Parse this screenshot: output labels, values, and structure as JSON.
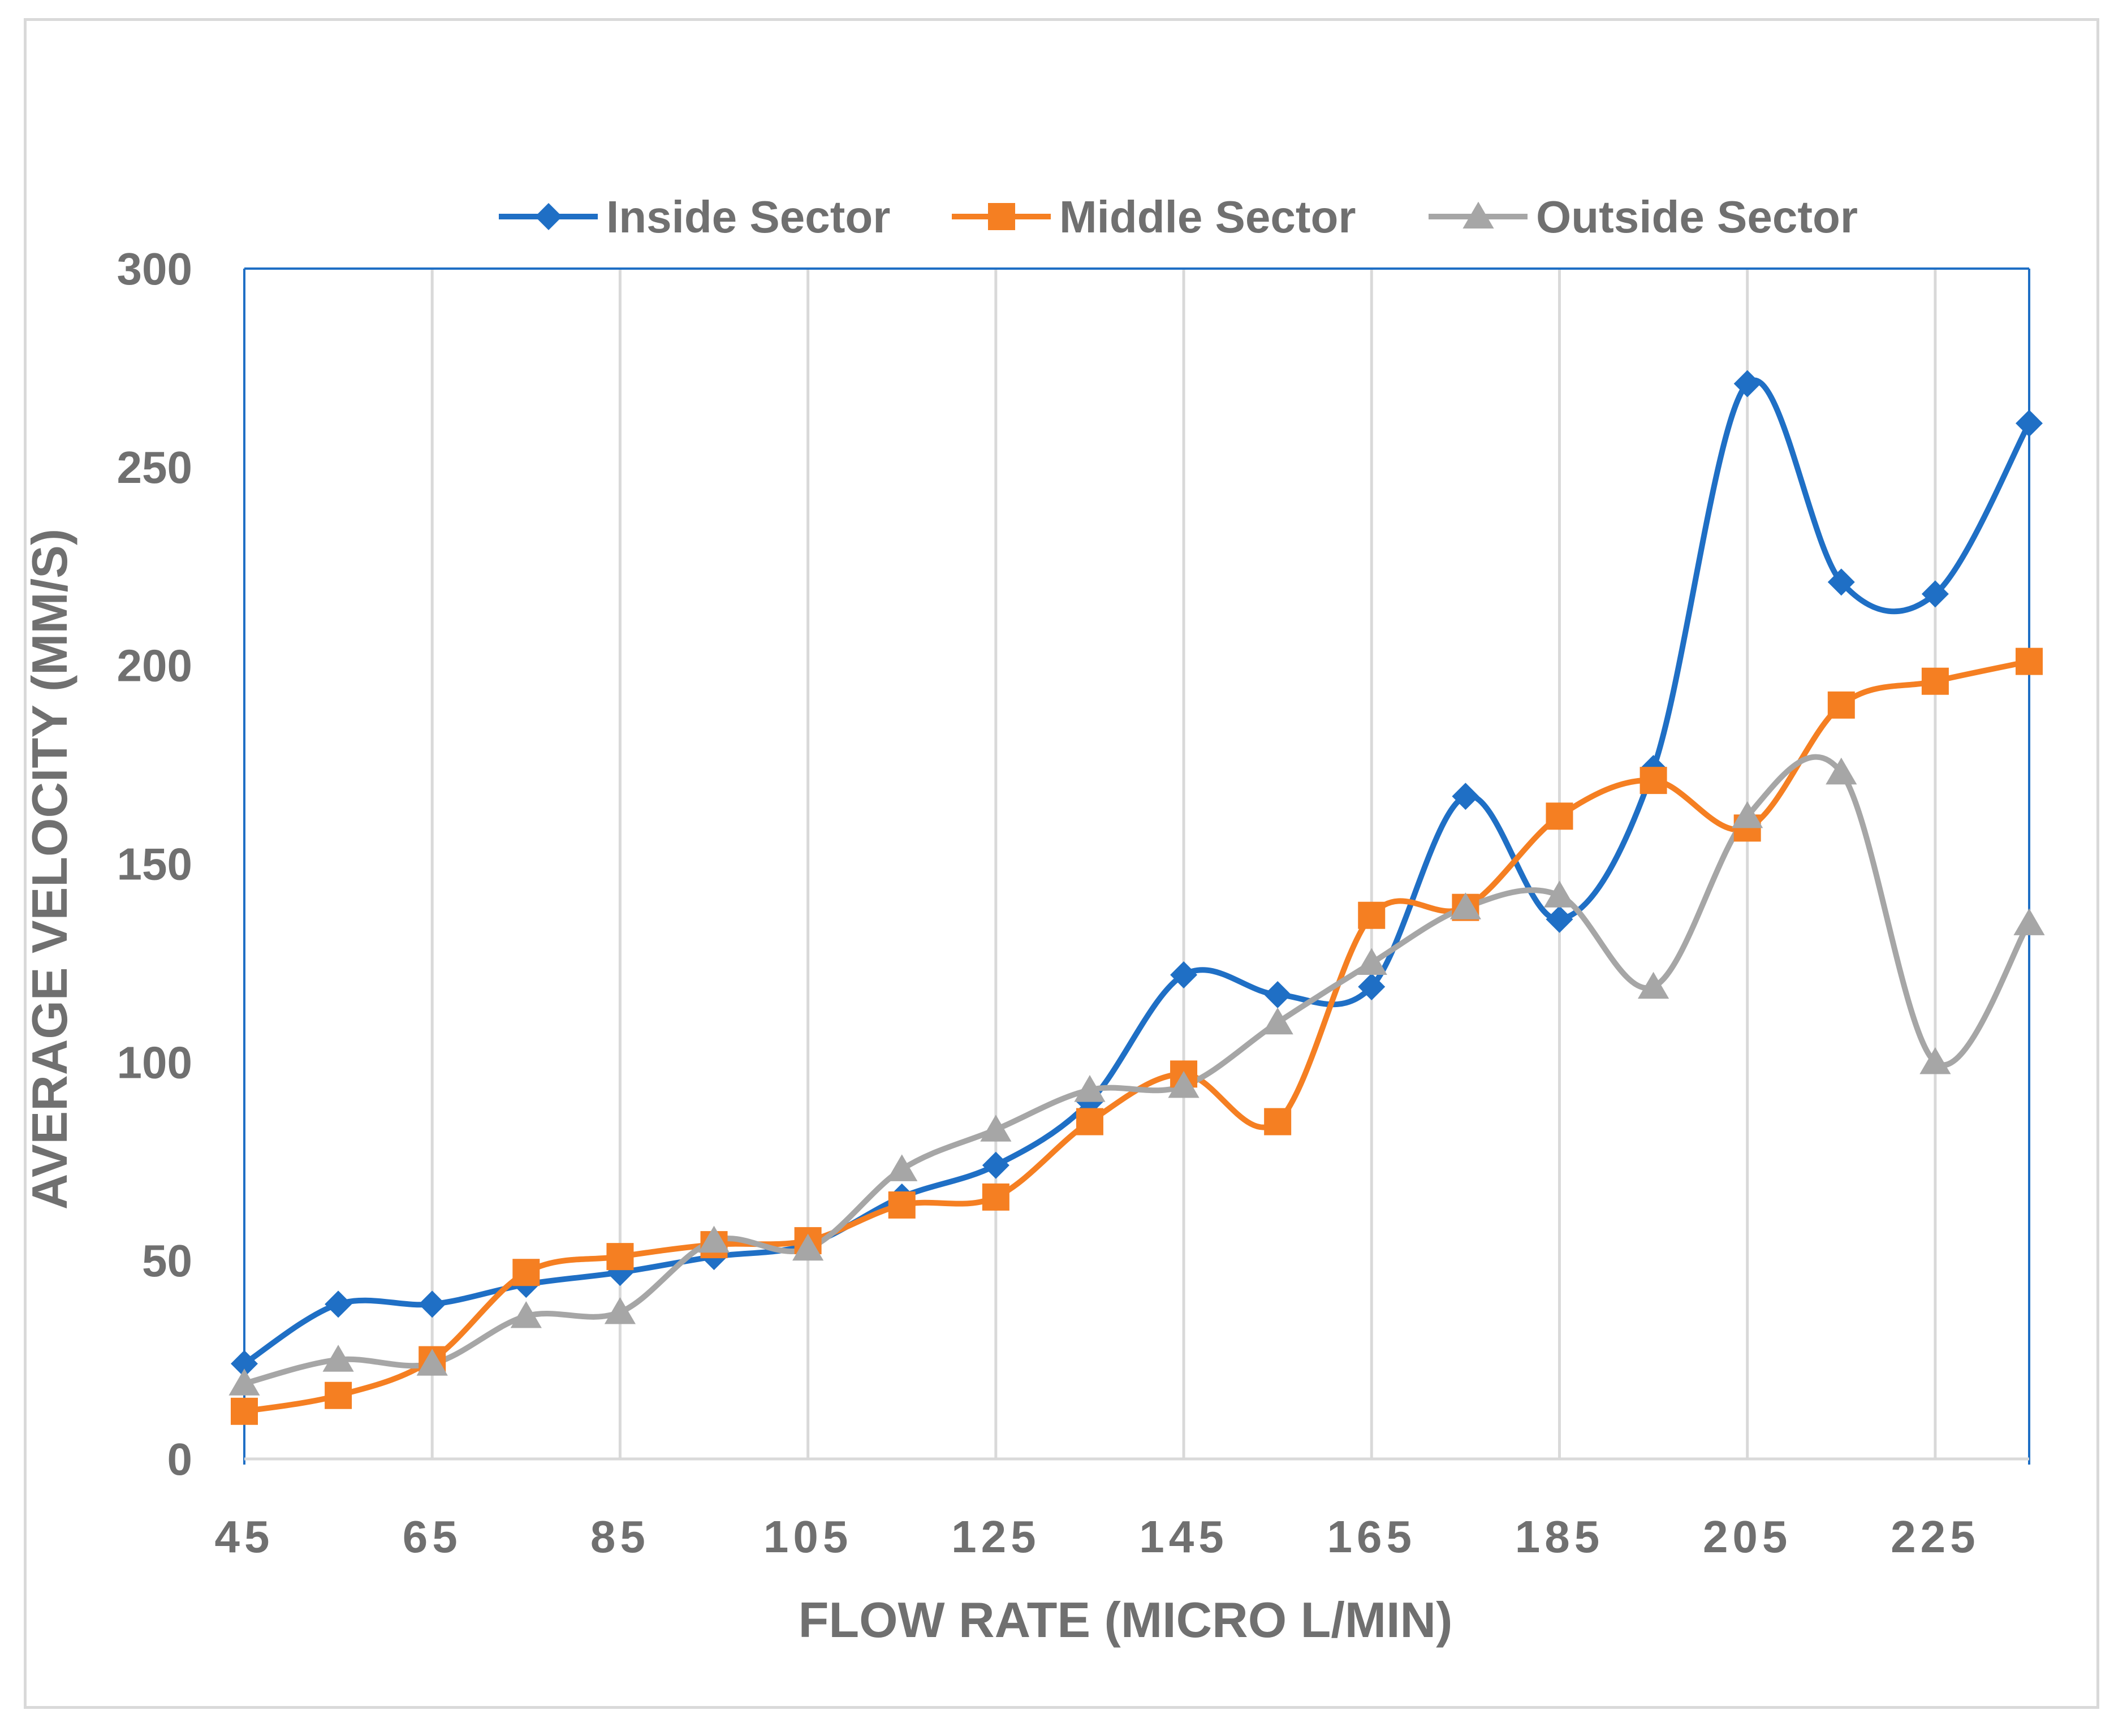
{
  "chart_data": {
    "type": "line",
    "smooth": true,
    "xlabel": "FLOW RATE (MICRO L/MIN)",
    "ylabel": "AVERAGE VELOCITY (MM/S)",
    "ylim": [
      0,
      300
    ],
    "yticks": [
      0,
      50,
      100,
      150,
      200,
      250,
      300
    ],
    "xlim": [
      45,
      235
    ],
    "xticks": [
      45,
      65,
      85,
      105,
      125,
      145,
      165,
      185,
      205,
      225
    ],
    "grid": "vertical",
    "legend_position": "top",
    "x": [
      45,
      55,
      65,
      75,
      85,
      95,
      105,
      115,
      125,
      135,
      145,
      155,
      165,
      175,
      185,
      195,
      205,
      215,
      225,
      235
    ],
    "series": [
      {
        "name": "Inside Sector",
        "color": "#1f6fc5",
        "marker": "diamond",
        "values": [
          24,
          39,
          39,
          44,
          47,
          51,
          54,
          66,
          74,
          90,
          122,
          117,
          119,
          167,
          136,
          174,
          271,
          221,
          218,
          261
        ]
      },
      {
        "name": "Middle Sector",
        "color": "#f57f22",
        "marker": "square",
        "values": [
          12,
          16,
          25,
          47,
          51,
          54,
          55,
          64,
          66,
          85,
          97,
          85,
          137,
          139,
          162,
          171,
          159,
          190,
          196,
          201
        ]
      },
      {
        "name": "Outside Sector",
        "color": "#a6a6a6",
        "marker": "triangle",
        "values": [
          19,
          25,
          24,
          36,
          37,
          55,
          53,
          73,
          83,
          93,
          94,
          110,
          125,
          139,
          142,
          119,
          162,
          173,
          100,
          135
        ]
      }
    ]
  }
}
